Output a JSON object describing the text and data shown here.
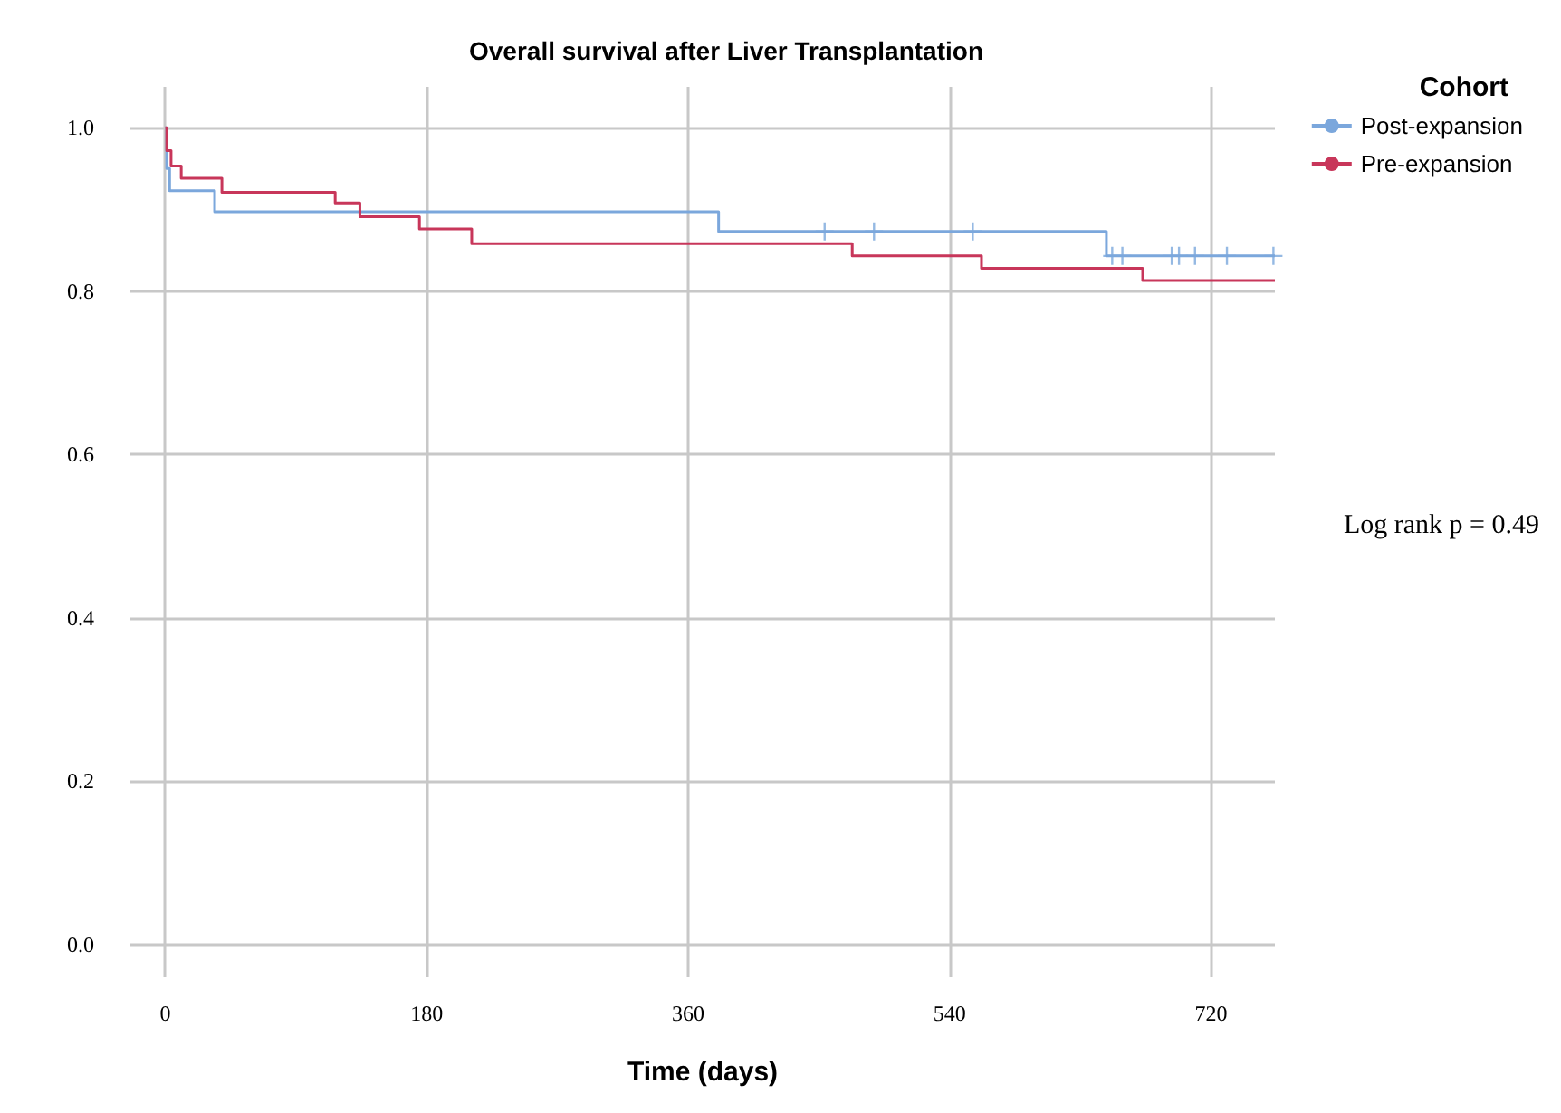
{
  "chart_data": {
    "type": "step",
    "title": "Overall survival after Liver Transplantation",
    "xlabel": "Time (days)",
    "legend_title": "Cohort",
    "legend": "right",
    "grid": true,
    "line_style": "solid",
    "marker": "none",
    "xlim": [
      -24,
      764
    ],
    "xticks": [
      0,
      180,
      360,
      540,
      720
    ],
    "ylim": [
      -0.04,
      1.05
    ],
    "yticks": [
      {
        "value": 0,
        "label": "0.0"
      },
      {
        "value": 0.2,
        "label": "0.2"
      },
      {
        "value": 0.4,
        "label": "0.4"
      },
      {
        "value": 0.6,
        "label": "0.6"
      },
      {
        "value": 0.8,
        "label": "0.8"
      },
      {
        "value": 1,
        "label": "1.0"
      }
    ],
    "annotations": [
      "Log rank p = 0.49"
    ],
    "series": [
      {
        "name": "Post-expansion",
        "color": "#7ba7dc",
        "x": [
          0,
          1,
          3,
          34,
          381,
          648,
          764
        ],
        "values": [
          1,
          0.95,
          0.923,
          0.897,
          0.873,
          0.843,
          0.843
        ]
      },
      {
        "name": "Pre-expansion",
        "color": "#c8365a",
        "x": [
          0,
          1,
          4,
          11,
          39,
          117,
          134,
          175,
          211,
          473,
          562,
          673,
          764
        ],
        "values": [
          1,
          0.972,
          0.953,
          0.938,
          0.921,
          0.908,
          0.891,
          0.876,
          0.858,
          0.843,
          0.828,
          0.813,
          0.813
        ]
      },
      {
        "type": "scatter",
        "marker": "cross",
        "color": "#7ba7dc",
        "x": [
          454,
          488,
          556,
          652,
          659,
          693,
          698,
          709,
          731,
          763
        ],
        "values": [
          0.873,
          0.873,
          0.873,
          0.843,
          0.843,
          0.843,
          0.843,
          0.843,
          0.843,
          0.843
        ]
      }
    ]
  }
}
